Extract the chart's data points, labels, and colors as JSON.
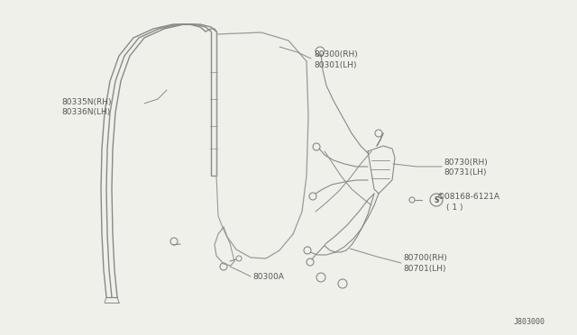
{
  "bg_color": "#f0f0eb",
  "line_color": "#888888",
  "text_color": "#555555",
  "part_number_bottom_right": "J803000",
  "labels": {
    "80335N_RH": "80335N(RH)",
    "80336N_LH": "80336N(LH)",
    "80300_RH": "80300(RH)",
    "80301_LH": "80301(LH)",
    "80300A": "80300A",
    "80730_RH": "80730(RH)",
    "80731_LH": "80731(LH)",
    "screw_label": "08168-6121A",
    "screw_qty": "( 1 )",
    "80700_RH": "80700(RH)",
    "80701_LH": "80701(LH)"
  }
}
